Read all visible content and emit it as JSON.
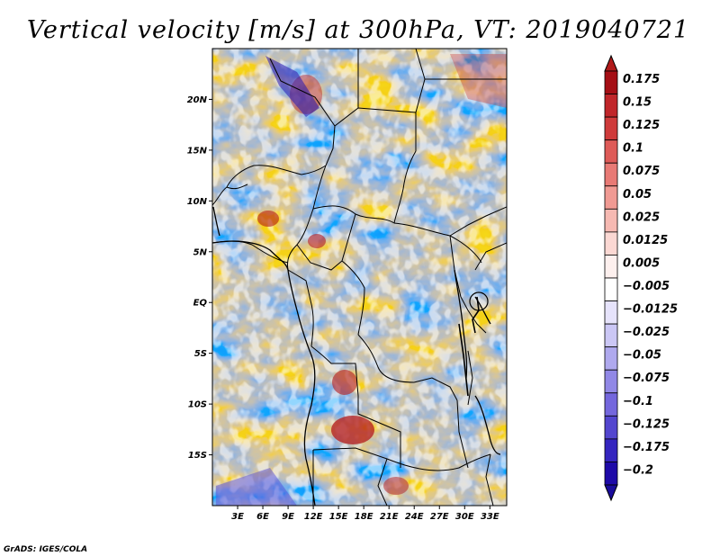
{
  "title": "Vertical velocity [m/s] at 300hPa, VT: 2019040721",
  "credit": "GrADS: IGES/COLA",
  "map": {
    "lat_range": [
      -20,
      25
    ],
    "lon_range": [
      0,
      35
    ],
    "lat_labels": [
      {
        "value": 20,
        "label": "20N"
      },
      {
        "value": 15,
        "label": "15N"
      },
      {
        "value": 10,
        "label": "10N"
      },
      {
        "value": 5,
        "label": "5N"
      },
      {
        "value": 0,
        "label": "EQ"
      },
      {
        "value": -5,
        "label": "5S"
      },
      {
        "value": -10,
        "label": "10S"
      },
      {
        "value": -15,
        "label": "15S"
      }
    ],
    "lon_labels": [
      {
        "value": 3,
        "label": "3E"
      },
      {
        "value": 6,
        "label": "6E"
      },
      {
        "value": 9,
        "label": "9E"
      },
      {
        "value": 12,
        "label": "12E"
      },
      {
        "value": 15,
        "label": "15E"
      },
      {
        "value": 18,
        "label": "18E"
      },
      {
        "value": 21,
        "label": "21E"
      },
      {
        "value": 24,
        "label": "24E"
      },
      {
        "value": 27,
        "label": "27E"
      },
      {
        "value": 30,
        "label": "30E"
      },
      {
        "value": 33,
        "label": "33E"
      }
    ]
  },
  "colorbar": {
    "labels": [
      "0.175",
      "0.15",
      "0.125",
      "0.1",
      "0.075",
      "0.05",
      "0.025",
      "0.0125",
      "0.005",
      "−0.005",
      "−0.0125",
      "−0.025",
      "−0.05",
      "−0.075",
      "−0.1",
      "−0.125",
      "−0.175",
      "−0.2"
    ],
    "colors": [
      "#a50f15",
      "#c0262a",
      "#cf3b3b",
      "#de5b58",
      "#e87a75",
      "#f09a93",
      "#f6b9b2",
      "#fbd8d3",
      "#fdf0ee",
      "#ffffff",
      "#e6e3fb",
      "#cbc7f5",
      "#afa9ee",
      "#9188e6",
      "#7467dd",
      "#5346cf",
      "#3525bf",
      "#1e0aa8"
    ],
    "top_color": "#b01a1a",
    "bottom_color": "#1a0c9c"
  }
}
